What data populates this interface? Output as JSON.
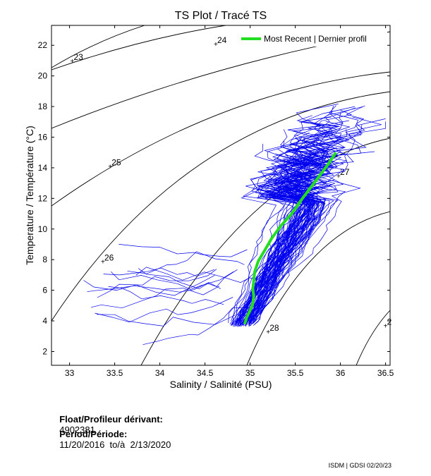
{
  "chart_data": {
    "type": "scatter",
    "title": "TS Plot / Tracé TS",
    "xlabel": "Salinity / Salinité (PSU)",
    "ylabel": "Temperature / Température (°C)",
    "xlim": [
      32.8,
      36.55
    ],
    "ylim": [
      1.1,
      23.3
    ],
    "xticks": [
      "33",
      "33.5",
      "34",
      "34.5",
      "35",
      "35.5",
      "36",
      "36.5"
    ],
    "yticks": [
      "2",
      "4",
      "6",
      "8",
      "10",
      "12",
      "14",
      "16",
      "18",
      "20",
      "22"
    ],
    "grid": false,
    "legend": {
      "position": "top-right",
      "entries": [
        "Most Recent | Dernier profil"
      ]
    },
    "density_contours": [
      {
        "label": "23",
        "label_at": [
          33.03,
          21.0
        ]
      },
      {
        "label": "24",
        "label_at": [
          34.62,
          22.1
        ]
      },
      {
        "label": "25",
        "label_at": [
          33.45,
          14.1
        ]
      },
      {
        "label": "26",
        "label_at": [
          33.37,
          7.9
        ]
      },
      {
        "label": "27",
        "label_at": [
          35.98,
          13.5
        ]
      },
      {
        "label": "28",
        "label_at": [
          35.2,
          3.3
        ]
      },
      {
        "label": "2",
        "label_at": [
          36.5,
          3.7
        ]
      }
    ],
    "series": [
      {
        "name": "Most Recent | Dernier profil",
        "color": "#22dd22",
        "points": [
          [
            35.95,
            15.0
          ],
          [
            35.86,
            14.2
          ],
          [
            35.72,
            13.1
          ],
          [
            35.58,
            12.0
          ],
          [
            35.46,
            11.0
          ],
          [
            35.34,
            10.2
          ],
          [
            35.24,
            9.4
          ],
          [
            35.16,
            8.6
          ],
          [
            35.09,
            7.9
          ],
          [
            35.05,
            7.2
          ],
          [
            35.04,
            6.6
          ],
          [
            35.03,
            6.1
          ],
          [
            35.04,
            5.6
          ],
          [
            35.03,
            5.1
          ],
          [
            35.0,
            4.7
          ],
          [
            34.96,
            4.2
          ],
          [
            34.94,
            3.8
          ]
        ]
      }
    ]
  },
  "float_info": {
    "float_label": "Float/Profileur dérivant:",
    "float_id": "4902381",
    "period_label": "Period/Période:",
    "period_value": "11/20/2016  to/à  2/13/2020"
  },
  "footer": "ISDM | GDSI  02/20/23",
  "colors": {
    "profiles": "#0000ee",
    "recent": "#22dd22",
    "axes": "#000000"
  }
}
